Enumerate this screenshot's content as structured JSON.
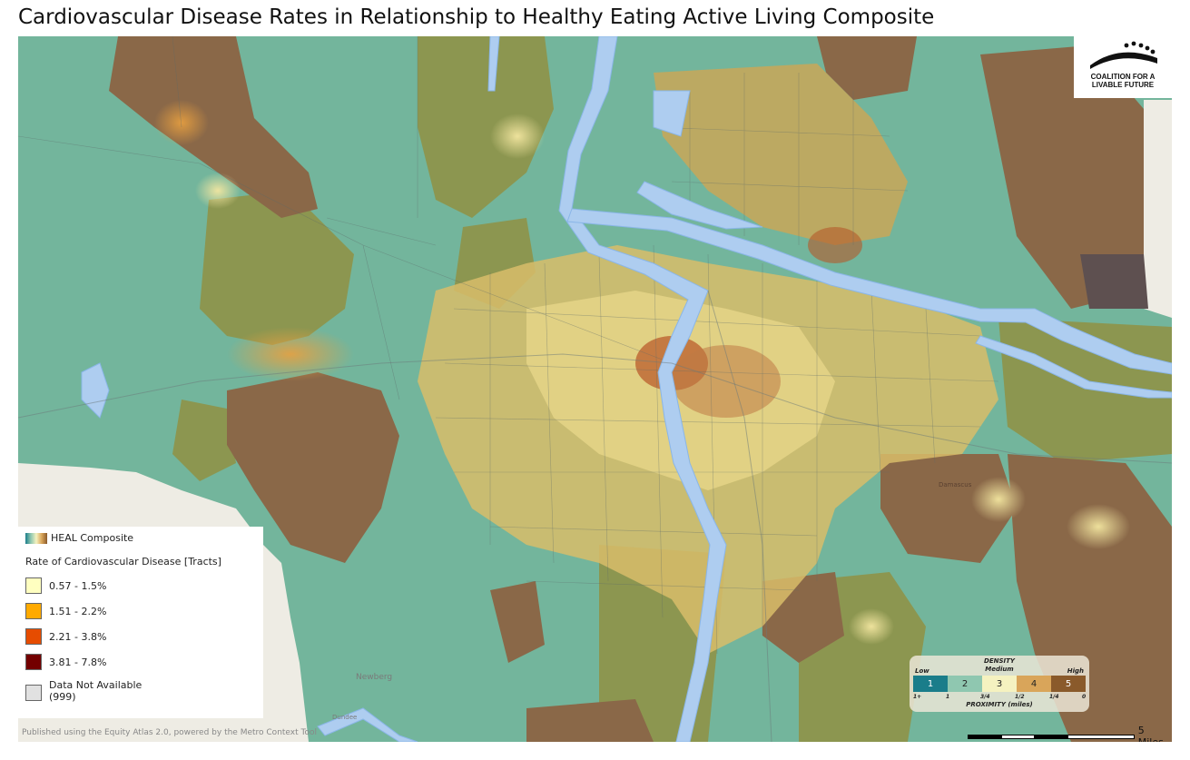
{
  "title": "Cardiovascular Disease Rates in Relationship to Healthy Eating Active Living Composite",
  "logo": {
    "line1": "COALITION FOR A",
    "line2": "LIVABLE FUTURE"
  },
  "legend": {
    "heal_label": "HEAL Composite",
    "heading": "Rate of Cardiovascular Disease [Tracts]",
    "classes": [
      {
        "label": "0.57 - 1.5%",
        "color": "#ffffc0"
      },
      {
        "label": "1.51 - 2.2%",
        "color": "#ffaa00"
      },
      {
        "label": "2.21 - 3.8%",
        "color": "#e64c00"
      },
      {
        "label": "3.81 - 7.8%",
        "color": "#730000"
      }
    ],
    "na_label": "Data Not Available",
    "na_code": "(999)",
    "na_color": "#e1e1e1"
  },
  "density": {
    "title": "DENSITY",
    "low": "Low",
    "medium": "Medium",
    "high": "High",
    "levels": [
      "1",
      "2",
      "3",
      "4",
      "5"
    ],
    "level_colors": [
      "#1a7d8a",
      "#8fc7b0",
      "#f5f2c0",
      "#d9a55a",
      "#8a5a2b"
    ],
    "proximity_ticks": [
      "1+",
      "1",
      "3/4",
      "1/2",
      "1/4",
      "0"
    ],
    "proximity_label": "PROXIMITY (miles)"
  },
  "scale": {
    "label": "5 Miles"
  },
  "credit": "Published using the Equity Atlas 2.0, powered by the Metro Context Tool",
  "places": [
    "Newberg",
    "Dundee",
    "Damascus"
  ]
}
